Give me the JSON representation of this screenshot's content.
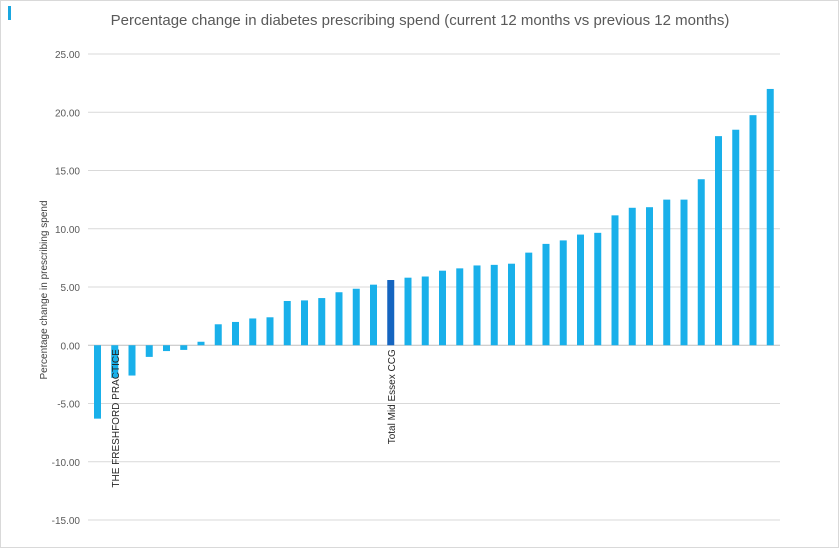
{
  "chart_data": {
    "type": "bar",
    "title": "Percentage change in diabetes prescribing spend (current 12 months vs previous 12 months)",
    "xlabel": "",
    "ylabel": "Percentage change in prescribing spend",
    "ylim": [
      -15,
      25
    ],
    "yticks": [
      "25.00",
      "20.00",
      "15.00",
      "10.00",
      "5.00",
      "0.00",
      "-5.00",
      "-10.00",
      "-15.00"
    ],
    "grid": true,
    "legend": "none",
    "values": [
      -6.3,
      -2.8,
      -2.6,
      -1.0,
      -0.5,
      -0.4,
      0.3,
      1.8,
      2.0,
      2.3,
      2.4,
      3.8,
      3.85,
      4.05,
      4.55,
      4.85,
      5.2,
      5.6,
      5.8,
      5.9,
      6.4,
      6.6,
      6.85,
      6.9,
      7.0,
      7.95,
      8.7,
      9.0,
      9.5,
      9.65,
      11.15,
      11.8,
      11.85,
      12.5,
      12.5,
      14.25,
      17.95,
      18.5,
      19.75,
      22.0
    ],
    "highlight_index": 17,
    "colors": {
      "bar": "#19b0ea",
      "highlight": "#1565c0",
      "grid": "#d9d9d9",
      "axis": "#bfbfbf",
      "text": "#595959"
    },
    "annotations": [
      {
        "bar_index": 1,
        "text": "THE FRESHFORD PRACTICE"
      },
      {
        "bar_index": 17,
        "text": "Total Mid Essex CCG"
      }
    ]
  }
}
